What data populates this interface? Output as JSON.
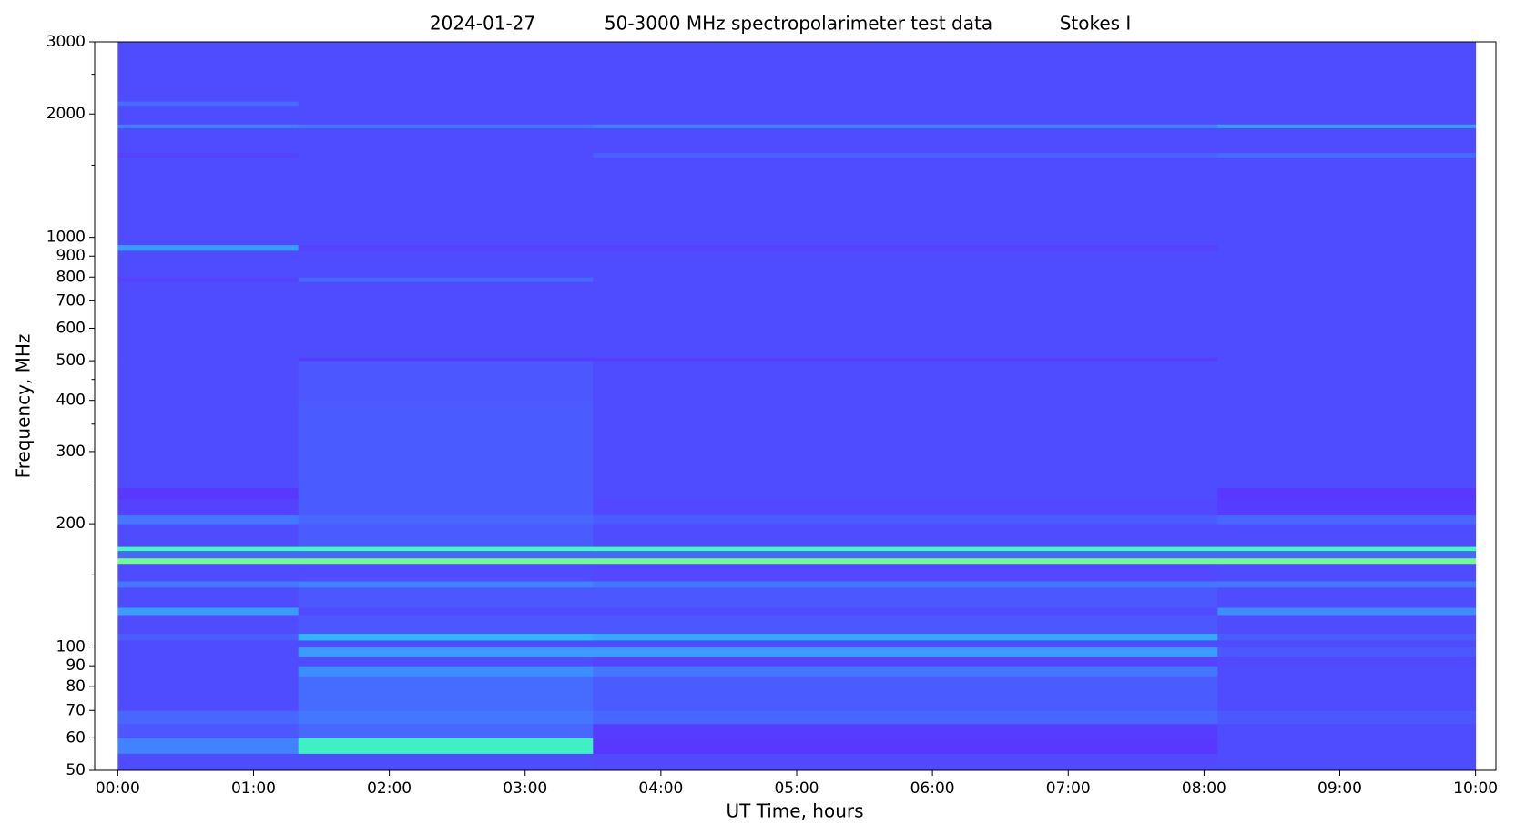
{
  "chart_data": {
    "type": "spectrogram",
    "title": [
      "2024-01-27",
      "50-3000 MHz spectropolarimeter test data",
      "Stokes I"
    ],
    "x_label": "UT Time, hours",
    "y_label": "Frequency, MHz",
    "y_log": true,
    "xlim": [
      -0.17,
      10.15
    ],
    "ylim": [
      50,
      3000
    ],
    "xticks": [
      {
        "value": 0,
        "label": "00:00"
      },
      {
        "value": 1,
        "label": "01:00"
      },
      {
        "value": 2,
        "label": "02:00"
      },
      {
        "value": 3,
        "label": "03:00"
      },
      {
        "value": 4,
        "label": "04:00"
      },
      {
        "value": 5,
        "label": "05:00"
      },
      {
        "value": 6,
        "label": "06:00"
      },
      {
        "value": 7,
        "label": "07:00"
      },
      {
        "value": 8,
        "label": "08:00"
      },
      {
        "value": 9,
        "label": "09:00"
      },
      {
        "value": 10,
        "label": "10:00"
      }
    ],
    "yticks": [
      50,
      60,
      70,
      80,
      90,
      100,
      200,
      300,
      400,
      500,
      600,
      700,
      800,
      900,
      1000,
      2000,
      3000
    ],
    "yminorticks": [
      150,
      250,
      350,
      450,
      1500,
      2500
    ],
    "colormap": [
      {
        "value": 0,
        "color": "#6a10ff"
      },
      {
        "value": 0.3,
        "color": "#4f4cff"
      },
      {
        "value": 0.5,
        "color": "#30b8ff"
      },
      {
        "value": 0.65,
        "color": "#40ffb0"
      },
      {
        "value": 0.85,
        "color": "#ffff00"
      },
      {
        "value": 1,
        "color": "#ff0000"
      }
    ],
    "x_edges": [
      0,
      1.33,
      3.5,
      8.1,
      10
    ],
    "y_edges": [
      50,
      55,
      60,
      65,
      70,
      85,
      90,
      95,
      100,
      104,
      108,
      120,
      125,
      140,
      145,
      160,
      165,
      172,
      176,
      200,
      210,
      230,
      245,
      400,
      500,
      510,
      780,
      800,
      930,
      960,
      1570,
      1610,
      1850,
      1890,
      2100,
      2150,
      3000
    ],
    "values": [
      [
        0.3,
        0.3,
        0.28,
        0.3
      ],
      [
        0.4,
        0.62,
        0.2,
        0.3
      ],
      [
        0.32,
        0.35,
        0.22,
        0.3
      ],
      [
        0.35,
        0.38,
        0.35,
        0.32
      ],
      [
        0.3,
        0.36,
        0.33,
        0.3
      ],
      [
        0.3,
        0.42,
        0.38,
        0.3
      ],
      [
        0.3,
        0.3,
        0.25,
        0.28
      ],
      [
        0.3,
        0.45,
        0.45,
        0.32
      ],
      [
        0.3,
        0.3,
        0.3,
        0.3
      ],
      [
        0.33,
        0.5,
        0.48,
        0.33
      ],
      [
        0.3,
        0.32,
        0.32,
        0.3
      ],
      [
        0.45,
        0.3,
        0.3,
        0.42
      ],
      [
        0.3,
        0.32,
        0.32,
        0.3
      ],
      [
        0.38,
        0.4,
        0.38,
        0.38
      ],
      [
        0.3,
        0.3,
        0.28,
        0.3
      ],
      [
        0.7,
        0.7,
        0.7,
        0.7
      ],
      [
        0.35,
        0.35,
        0.35,
        0.35
      ],
      [
        0.65,
        0.65,
        0.65,
        0.65
      ],
      [
        0.3,
        0.33,
        0.3,
        0.3
      ],
      [
        0.38,
        0.35,
        0.33,
        0.35
      ],
      [
        0.25,
        0.33,
        0.28,
        0.22
      ],
      [
        0.2,
        0.33,
        0.3,
        0.2
      ],
      [
        0.3,
        0.33,
        0.3,
        0.3
      ],
      [
        0.3,
        0.32,
        0.3,
        0.3
      ],
      [
        0.3,
        0.22,
        0.22,
        0.3
      ],
      [
        0.3,
        0.3,
        0.3,
        0.3
      ],
      [
        0.25,
        0.35,
        0.3,
        0.3
      ],
      [
        0.3,
        0.3,
        0.3,
        0.3
      ],
      [
        0.45,
        0.25,
        0.25,
        0.3
      ],
      [
        0.3,
        0.3,
        0.3,
        0.3
      ],
      [
        0.25,
        0.3,
        0.34,
        0.36
      ],
      [
        0.3,
        0.3,
        0.3,
        0.3
      ],
      [
        0.4,
        0.38,
        0.4,
        0.45
      ],
      [
        0.3,
        0.3,
        0.3,
        0.3
      ],
      [
        0.36,
        0.3,
        0.3,
        0.3
      ],
      [
        0.3,
        0.3,
        0.3,
        0.3
      ]
    ]
  }
}
